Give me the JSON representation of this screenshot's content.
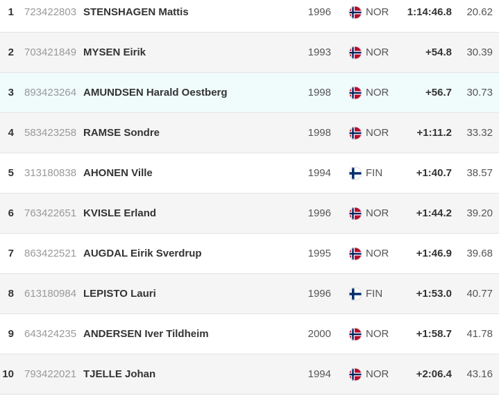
{
  "table": {
    "rows": [
      {
        "rank": "1",
        "code": "723422803",
        "name": "STENSHAGEN Mattis",
        "year": "1996",
        "nation": "NOR",
        "time": "1:14:46.8",
        "points": "20.62"
      },
      {
        "rank": "2",
        "code": "703421849",
        "name": "MYSEN Eirik",
        "year": "1993",
        "nation": "NOR",
        "time": "+54.8",
        "points": "30.39"
      },
      {
        "rank": "3",
        "code": "893423264",
        "name": "AMUNDSEN Harald Oestberg",
        "year": "1998",
        "nation": "NOR",
        "time": "+56.7",
        "points": "30.73"
      },
      {
        "rank": "4",
        "code": "583423258",
        "name": "RAMSE Sondre",
        "year": "1998",
        "nation": "NOR",
        "time": "+1:11.2",
        "points": "33.32"
      },
      {
        "rank": "5",
        "code": "313180838",
        "name": "AHONEN Ville",
        "year": "1994",
        "nation": "FIN",
        "time": "+1:40.7",
        "points": "38.57"
      },
      {
        "rank": "6",
        "code": "763422651",
        "name": "KVISLE Erland",
        "year": "1996",
        "nation": "NOR",
        "time": "+1:44.2",
        "points": "39.20"
      },
      {
        "rank": "7",
        "code": "863422521",
        "name": "AUGDAL Eirik Sverdrup",
        "year": "1995",
        "nation": "NOR",
        "time": "+1:46.9",
        "points": "39.68"
      },
      {
        "rank": "8",
        "code": "613180984",
        "name": "LEPISTO Lauri",
        "year": "1996",
        "nation": "FIN",
        "time": "+1:53.0",
        "points": "40.77"
      },
      {
        "rank": "9",
        "code": "643424235",
        "name": "ANDERSEN Iver Tildheim",
        "year": "2000",
        "nation": "NOR",
        "time": "+1:58.7",
        "points": "41.78"
      },
      {
        "rank": "10",
        "code": "793422021",
        "name": "TJELLE Johan",
        "year": "1994",
        "nation": "NOR",
        "time": "+2:06.4",
        "points": "43.16"
      }
    ]
  }
}
